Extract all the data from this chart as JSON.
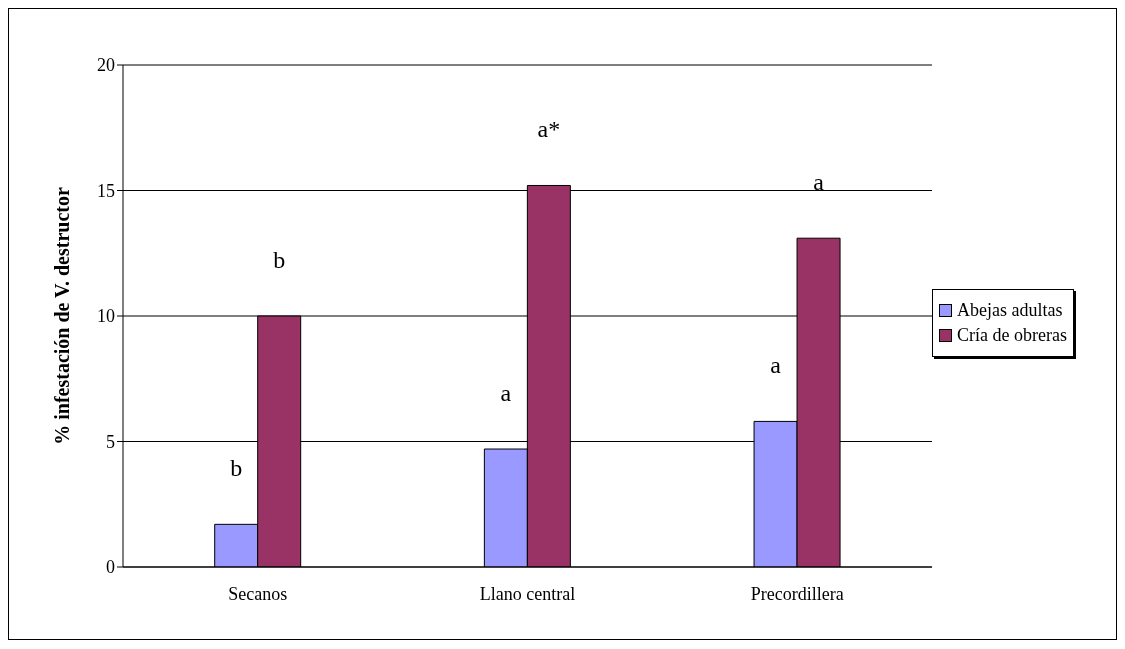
{
  "chart_data": {
    "type": "bar",
    "ylabel": "% infestación de V. destructor",
    "categories": [
      "Secanos",
      "Llano central",
      "Precordillera"
    ],
    "series": [
      {
        "name": "Abejas adultas",
        "color": "#9999ff",
        "values": [
          1.7,
          4.7,
          5.8
        ]
      },
      {
        "name": "Cría de obreras",
        "color": "#993366",
        "values": [
          10.0,
          15.2,
          13.1
        ]
      }
    ],
    "ylim": [
      0,
      20
    ],
    "yticks": [
      0,
      5,
      10,
      15,
      20
    ],
    "grid": "y",
    "legend": "right",
    "annotations": [
      {
        "text": "b",
        "x": "Secanos",
        "y": 1.7
      },
      {
        "text": "b",
        "x": "Secanos",
        "y": 10.0
      },
      {
        "text": "a",
        "x": "Llano central",
        "y": 4.7
      },
      {
        "text": "a*",
        "x": "Llano central",
        "y": 15.2
      },
      {
        "text": "a",
        "x": "Precordillera",
        "y": 5.8
      },
      {
        "text": "a",
        "x": "Precordillera",
        "y": 13.1
      }
    ]
  }
}
